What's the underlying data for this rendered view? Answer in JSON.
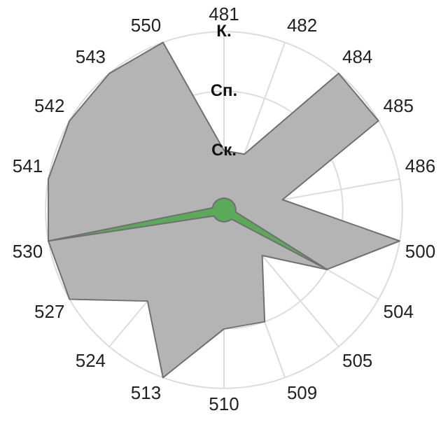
{
  "chart_data": {
    "type": "radar",
    "categories": [
      "481",
      "482",
      "484",
      "485",
      "486",
      "500",
      "504",
      "505",
      "509",
      "510",
      "513",
      "524",
      "527",
      "530",
      "541",
      "542",
      "543",
      "550"
    ],
    "series": [
      {
        "color": "#b4b4b4",
        "values": [
          1,
          1,
          3,
          3,
          1,
          3,
          2,
          1,
          2,
          2,
          3,
          2,
          3,
          3,
          3,
          3,
          3,
          3
        ]
      },
      {
        "color": "#5aaa5a",
        "values": [
          0.2,
          0.2,
          0.2,
          0.2,
          0.2,
          0.2,
          2,
          0.2,
          0.2,
          0.2,
          0.2,
          0.2,
          0.2,
          3,
          0.2,
          0.2,
          0.2,
          0.2
        ]
      }
    ],
    "ylim": [
      0,
      3
    ],
    "yticks": [
      {
        "value": 1,
        "label": "Ск."
      },
      {
        "value": 2,
        "label": "Сп."
      },
      {
        "value": 3,
        "label": "К."
      }
    ],
    "grid": true,
    "legend": false,
    "marker": "none"
  }
}
